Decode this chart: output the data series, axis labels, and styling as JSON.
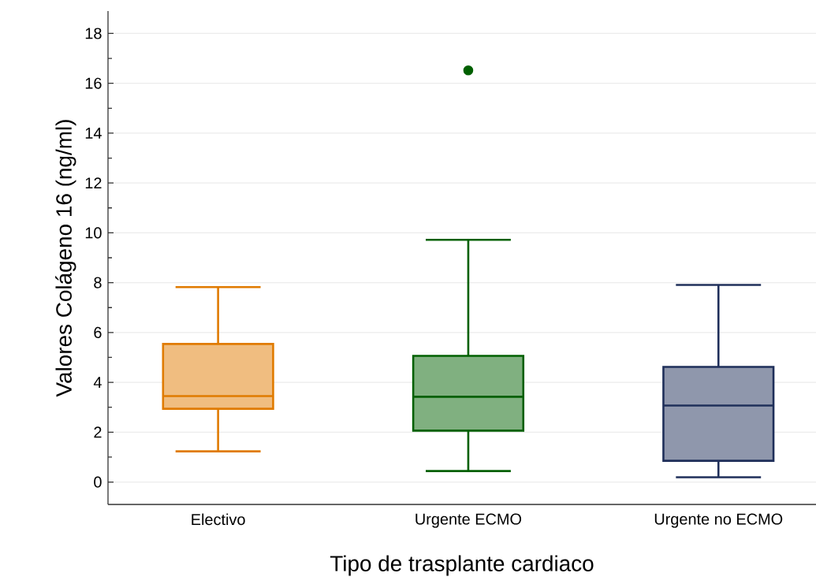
{
  "chart_data": {
    "type": "box",
    "xlabel": "Tipo de trasplante cardiaco",
    "ylabel": "Valores Colágeno 16 (ng/ml)",
    "categories": [
      "Electivo",
      "Urgente ECMO",
      "Urgente no ECMO"
    ],
    "boxes": [
      {
        "low": 1.23,
        "q1": 2.94,
        "median": 3.45,
        "q3": 5.54,
        "high": 7.82
      },
      {
        "low": 0.44,
        "q1": 2.06,
        "median": 3.42,
        "q3": 5.06,
        "high": 9.72,
        "outliers": [
          16.52
        ]
      },
      {
        "low": 0.19,
        "q1": 0.85,
        "median": 3.07,
        "q3": 4.62,
        "high": 7.91
      }
    ],
    "colors": [
      "#e07b00",
      "#006000",
      "#1f2f5a"
    ],
    "ylim": [
      -0.9,
      18.9
    ],
    "yticks": [
      0,
      {
        "value": 1,
        "label": null
      },
      2,
      {
        "value": 3,
        "label": null
      },
      4,
      {
        "value": 5,
        "label": null
      },
      6,
      {
        "value": 7,
        "label": null
      },
      8,
      {
        "value": 9,
        "label": null
      },
      10,
      {
        "value": 11,
        "label": null
      },
      12,
      {
        "value": 13,
        "label": null
      },
      14,
      {
        "value": 15,
        "label": null
      },
      16,
      {
        "value": 17,
        "label": null
      },
      18
    ],
    "grid": "y"
  }
}
